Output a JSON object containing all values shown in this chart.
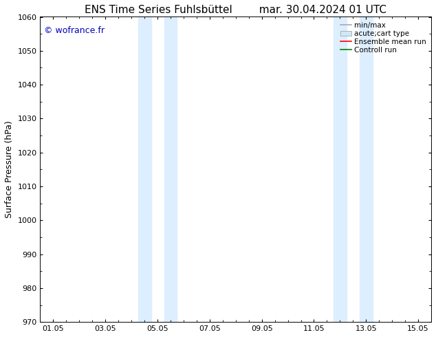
{
  "title_left": "ENS Time Series Fuhlsbüttel",
  "title_right": "mar. 30.04.2024 01 UTC",
  "ylabel": "Surface Pressure (hPa)",
  "xlim": [
    0.0,
    15.0
  ],
  "ylim": [
    970,
    1060
  ],
  "yticks": [
    970,
    980,
    990,
    1000,
    1010,
    1020,
    1030,
    1040,
    1050,
    1060
  ],
  "xtick_labels": [
    "01.05",
    "03.05",
    "05.05",
    "07.05",
    "09.05",
    "11.05",
    "13.05",
    "15.05"
  ],
  "xtick_positions": [
    0.5,
    2.5,
    4.5,
    6.5,
    8.5,
    10.5,
    12.5,
    14.5
  ],
  "shaded_bands": [
    {
      "xmin": 3.75,
      "xmax": 4.25,
      "color": "#ddeeff"
    },
    {
      "xmin": 4.75,
      "xmax": 5.25,
      "color": "#ddeeff"
    },
    {
      "xmin": 11.25,
      "xmax": 11.75,
      "color": "#ddeeff"
    },
    {
      "xmin": 12.25,
      "xmax": 12.75,
      "color": "#ddeeff"
    }
  ],
  "watermark": "© wofrance.fr",
  "watermark_color": "#0000bb",
  "background_color": "#ffffff",
  "legend_entries": [
    {
      "label": "min/max",
      "color": "#aaaaaa",
      "lw": 1.2,
      "ls": "-",
      "type": "line"
    },
    {
      "label": "acute;cart type",
      "color": "#d0e8f8",
      "lw": 6,
      "ls": "-",
      "type": "patch"
    },
    {
      "label": "Ensemble mean run",
      "color": "red",
      "lw": 1.2,
      "ls": "-",
      "type": "line"
    },
    {
      "label": "Controll run",
      "color": "green",
      "lw": 1.2,
      "ls": "-",
      "type": "line"
    }
  ],
  "title_fontsize": 11,
  "axis_label_fontsize": 9,
  "tick_fontsize": 8,
  "legend_fontsize": 7.5
}
